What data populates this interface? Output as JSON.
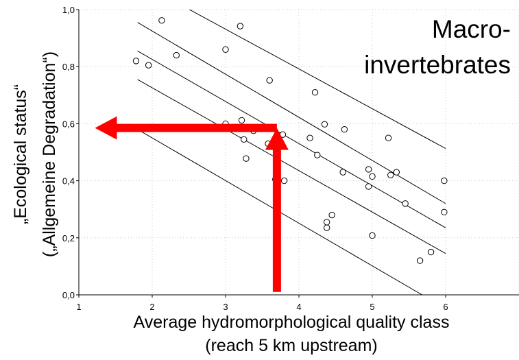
{
  "chart_data": {
    "type": "scatter",
    "overlay_title_lines": [
      "Macro-",
      "invertebrates"
    ],
    "xlabel_lines": [
      "Average hydromorphological quality class",
      "(reach 5 km upstream)"
    ],
    "ylabel_lines": [
      "„Ecological status“",
      "(„Allgemeine Degradation“)"
    ],
    "xlim": [
      1,
      7
    ],
    "ylim": [
      0,
      1
    ],
    "x_ticks": [
      "1",
      "2",
      "3",
      "4",
      "5",
      "6"
    ],
    "y_ticks": [
      "0,0",
      "0,2",
      "0,4",
      "0,6",
      "0,8",
      "1,0"
    ],
    "grid": true,
    "points": [
      {
        "x": 1.78,
        "y": 0.82
      },
      {
        "x": 1.95,
        "y": 0.805
      },
      {
        "x": 2.13,
        "y": 0.962
      },
      {
        "x": 2.33,
        "y": 0.84
      },
      {
        "x": 3.0,
        "y": 0.86
      },
      {
        "x": 3.2,
        "y": 0.942
      },
      {
        "x": 3.0,
        "y": 0.6
      },
      {
        "x": 3.22,
        "y": 0.612
      },
      {
        "x": 3.25,
        "y": 0.545
      },
      {
        "x": 3.28,
        "y": 0.478
      },
      {
        "x": 3.38,
        "y": 0.575
      },
      {
        "x": 3.58,
        "y": 0.53
      },
      {
        "x": 3.6,
        "y": 0.752
      },
      {
        "x": 3.68,
        "y": 0.405
      },
      {
        "x": 3.8,
        "y": 0.4
      },
      {
        "x": 3.78,
        "y": 0.562
      },
      {
        "x": 4.15,
        "y": 0.55
      },
      {
        "x": 4.22,
        "y": 0.71
      },
      {
        "x": 4.25,
        "y": 0.49
      },
      {
        "x": 4.35,
        "y": 0.598
      },
      {
        "x": 4.38,
        "y": 0.255
      },
      {
        "x": 4.38,
        "y": 0.235
      },
      {
        "x": 4.45,
        "y": 0.28
      },
      {
        "x": 4.6,
        "y": 0.43
      },
      {
        "x": 4.62,
        "y": 0.58
      },
      {
        "x": 4.95,
        "y": 0.44
      },
      {
        "x": 4.95,
        "y": 0.38
      },
      {
        "x": 5.0,
        "y": 0.415
      },
      {
        "x": 5.0,
        "y": 0.208
      },
      {
        "x": 5.22,
        "y": 0.55
      },
      {
        "x": 5.25,
        "y": 0.42
      },
      {
        "x": 5.33,
        "y": 0.43
      },
      {
        "x": 5.45,
        "y": 0.32
      },
      {
        "x": 5.65,
        "y": 0.12
      },
      {
        "x": 5.8,
        "y": 0.15
      },
      {
        "x": 5.98,
        "y": 0.4
      },
      {
        "x": 5.98,
        "y": 0.29
      }
    ],
    "lines": [
      {
        "x1": 2.15,
        "y1": 1.05,
        "x2": 6.0,
        "y2": 0.513
      },
      {
        "x1": 1.8,
        "y1": 0.955,
        "x2": 6.0,
        "y2": 0.32
      },
      {
        "x1": 1.8,
        "y1": 0.855,
        "x2": 6.0,
        "y2": 0.235
      },
      {
        "x1": 1.8,
        "y1": 0.755,
        "x2": 6.0,
        "y2": 0.145
      },
      {
        "x1": 1.8,
        "y1": 0.58,
        "x2": 5.68,
        "y2": 0.0
      }
    ],
    "arrows": [
      {
        "from": [
          3.7,
          0.01
        ],
        "to": [
          3.7,
          0.585
        ],
        "color": "#ff0000"
      },
      {
        "from": [
          3.7,
          0.585
        ],
        "to": [
          1.22,
          0.585
        ],
        "color": "#ff0000"
      }
    ]
  }
}
